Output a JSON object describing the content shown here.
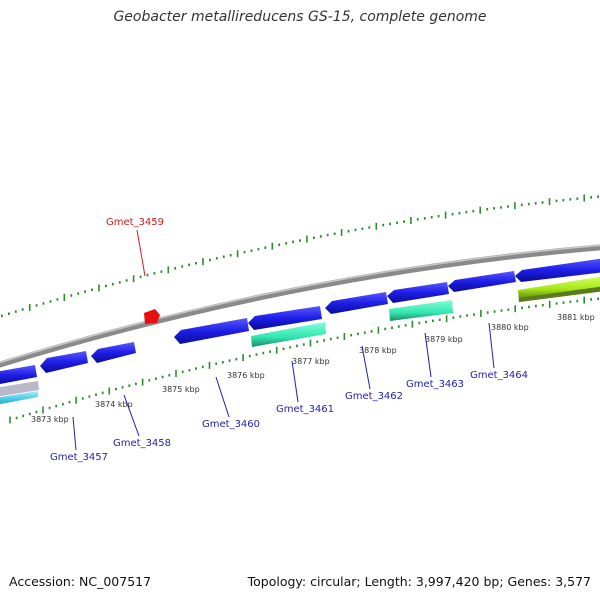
{
  "title": "Geobacter metallireducens GS-15, complete genome",
  "footer": {
    "accession": "Accession: NC_007517",
    "stats": "Topology: circular; Length: 3,997,420 bp; Genes: 3,577"
  },
  "colors": {
    "backbone": "#8a8a8a",
    "gene_blue": "#1e1ee6",
    "gene_teal": "#33e6b0",
    "gene_red": "#e61010",
    "gene_lime": "#a6e61a",
    "tick_green": "#2e8b2e",
    "label_blue": "#1f1fb0",
    "label_red": "#d41c1c"
  },
  "scale_labels": [
    "3873 kbp",
    "3874 kbp",
    "3875 kbp",
    "3876 kbp",
    "3877 kbp",
    "3878 kbp",
    "3879 kbp",
    "3880 kbp",
    "3881 kbp"
  ],
  "gene_labels": [
    {
      "id": "Gmet_3457",
      "color": "blue"
    },
    {
      "id": "Gmet_3458",
      "color": "blue"
    },
    {
      "id": "Gmet_3459",
      "color": "red"
    },
    {
      "id": "Gmet_3460",
      "color": "blue"
    },
    {
      "id": "Gmet_3461",
      "color": "blue"
    },
    {
      "id": "Gmet_3462",
      "color": "blue"
    },
    {
      "id": "Gmet_3463",
      "color": "blue"
    },
    {
      "id": "Gmet_3464",
      "color": "blue"
    }
  ]
}
